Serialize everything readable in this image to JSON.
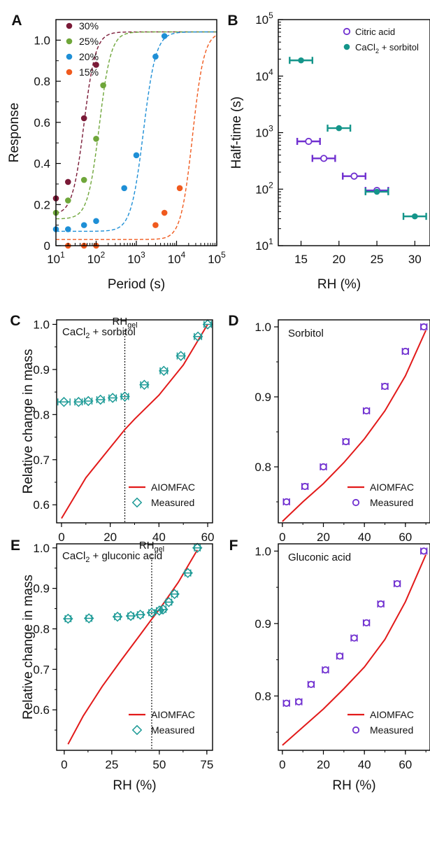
{
  "chart_data": [
    {
      "panel": "A",
      "type": "scatter",
      "xscale": "log",
      "xlabel": "Period (s)",
      "ylabel": "Response",
      "xlim": [
        10,
        100000
      ],
      "ylim": [
        0,
        1.1
      ],
      "xticks": [
        "10",
        "10",
        "10",
        "10",
        "10"
      ],
      "xtick_exp": [
        "1",
        "2",
        "3",
        "4",
        "5"
      ],
      "yticks": [
        "0",
        "0.2",
        "0.4",
        "0.6",
        "0.8",
        "1.0"
      ],
      "series": [
        {
          "name": "30%",
          "color": "#7a1a37",
          "x": [
            10,
            20,
            50,
            100
          ],
          "y": [
            0.23,
            0.31,
            0.62,
            0.88
          ],
          "fit": {
            "x0": 50,
            "k": 3.0,
            "lo": 0.15,
            "hi": 1.04
          }
        },
        {
          "name": "25%",
          "color": "#6fa63a",
          "x": [
            10,
            20,
            50,
            100,
            150
          ],
          "y": [
            0.16,
            0.22,
            0.32,
            0.52,
            0.78
          ],
          "fit": {
            "x0": 120,
            "k": 3.0,
            "lo": 0.13,
            "hi": 1.04
          }
        },
        {
          "name": "20%",
          "color": "#1e8fd6",
          "x": [
            10,
            20,
            50,
            100,
            500,
            1000,
            3000,
            5000
          ],
          "y": [
            0.08,
            0.08,
            0.1,
            0.12,
            0.28,
            0.44,
            0.92,
            1.02
          ],
          "fit": {
            "x0": 1500,
            "k": 2.8,
            "lo": 0.07,
            "hi": 1.04
          }
        },
        {
          "name": "15%",
          "color": "#f05a1e",
          "x": [
            20,
            50,
            100,
            3000,
            5000,
            12000
          ],
          "y": [
            0.0,
            0.0,
            0.0,
            0.1,
            0.16,
            0.28
          ],
          "fit": {
            "x0": 25000,
            "k": 3.0,
            "lo": 0.03,
            "hi": 1.04
          }
        }
      ]
    },
    {
      "panel": "B",
      "type": "scatter",
      "yscale": "log",
      "xlabel": "RH (%)",
      "ylabel": "Half-time (s)",
      "xlim": [
        12,
        32
      ],
      "ylim": [
        10,
        100000
      ],
      "xticks": [
        "15",
        "20",
        "25",
        "30"
      ],
      "yticks": [
        "10",
        "10",
        "10",
        "10",
        "10"
      ],
      "ytick_exp": [
        "1",
        "2",
        "3",
        "4",
        "5"
      ],
      "series": [
        {
          "name": "Citric acid",
          "color": "#7030d0",
          "marker": "open-circle",
          "x": [
            16,
            18,
            22,
            25
          ],
          "y": [
            700,
            350,
            170,
            95
          ],
          "xerr": 1.5
        },
        {
          "name": "CaCl2 + sorbitol",
          "name_base": "CaCl",
          "name_sub": "2",
          "name_rest": " + sorbitol",
          "color": "#14958a",
          "marker": "filled-circle",
          "x": [
            15,
            20,
            25,
            30
          ],
          "y": [
            19000,
            1200,
            90,
            33
          ],
          "xerr": 1.5
        }
      ]
    },
    {
      "panel": "C",
      "type": "scatter",
      "xlabel": "",
      "ylabel": "Relative  change in mass",
      "xlim": [
        -2,
        62
      ],
      "ylim": [
        0.56,
        1.01
      ],
      "xticks": [
        "0",
        "20",
        "40",
        "60"
      ],
      "yticks": [
        "0.6",
        "0.7",
        "0.8",
        "0.9",
        "1.0"
      ],
      "annotation": "CaCl2 + sorbitol",
      "annotation_base": "CaCl",
      "annotation_sub": "2",
      "annotation_rest": " + sorbitol",
      "vline": {
        "x": 26,
        "label_base": "RH",
        "label_sub": "gel"
      },
      "series": [
        {
          "name": "AIOMFAC",
          "color": "#e21a1a",
          "type": "line",
          "x": [
            0,
            10,
            20,
            26,
            30,
            40,
            50,
            60
          ],
          "y": [
            0.57,
            0.66,
            0.727,
            0.767,
            0.79,
            0.843,
            0.91,
            1.0
          ]
        },
        {
          "name": "Measured",
          "color": "#1c9a96",
          "marker": "open-diamond",
          "x": [
            1,
            7,
            11,
            16,
            21,
            26,
            34,
            42,
            49,
            56,
            60
          ],
          "y": [
            0.828,
            0.828,
            0.83,
            0.833,
            0.837,
            0.84,
            0.866,
            0.897,
            0.93,
            0.973,
            1.0
          ],
          "xerr": [
            2.5,
            1.5,
            1.5,
            1.5,
            1.5,
            1.5,
            1.5,
            1.5,
            1.5,
            1.5,
            1.5
          ]
        }
      ]
    },
    {
      "panel": "D",
      "type": "scatter",
      "xlabel": "",
      "ylabel": "",
      "xlim": [
        -2,
        72
      ],
      "ylim": [
        0.72,
        1.01
      ],
      "xticks": [
        "0",
        "20",
        "40",
        "60"
      ],
      "yticks": [
        "0.8",
        "0.9",
        "1.0"
      ],
      "annotation": "Sorbitol",
      "series": [
        {
          "name": "AIOMFAC",
          "color": "#e21a1a",
          "type": "line",
          "x": [
            0,
            10,
            20,
            30,
            40,
            50,
            60,
            70
          ],
          "y": [
            0.722,
            0.75,
            0.776,
            0.806,
            0.84,
            0.88,
            0.93,
            0.995
          ]
        },
        {
          "name": "Measured",
          "color": "#7030d0",
          "marker": "open-circle",
          "x": [
            2,
            11,
            20,
            31,
            41,
            50,
            60,
            69
          ],
          "y": [
            0.75,
            0.772,
            0.8,
            0.836,
            0.88,
            0.915,
            0.965,
            1.0
          ],
          "xerr": 1.5
        }
      ]
    },
    {
      "panel": "E",
      "type": "scatter",
      "xlabel": "RH (%)",
      "ylabel": "Relative  change in mass",
      "xlim": [
        -4,
        78
      ],
      "ylim": [
        0.5,
        1.01
      ],
      "xticks": [
        "0",
        "25",
        "50",
        "75"
      ],
      "yticks": [
        "0.6",
        "0.7",
        "0.8",
        "0.9",
        "1.0"
      ],
      "annotation": "CaCl2 + gluconic acid",
      "annotation_base": "CaCl",
      "annotation_sub": "2",
      "annotation_rest": " + gluconic acid",
      "vline": {
        "x": 46,
        "label_base": "RH",
        "label_sub": "gel"
      },
      "series": [
        {
          "name": "AIOMFAC",
          "color": "#e21a1a",
          "type": "line",
          "x": [
            2,
            10,
            20,
            30,
            40,
            46,
            50,
            60,
            70
          ],
          "y": [
            0.515,
            0.585,
            0.658,
            0.723,
            0.786,
            0.824,
            0.848,
            0.915,
            0.995
          ]
        },
        {
          "name": "Measured",
          "color": "#1c9a96",
          "marker": "open-diamond",
          "x": [
            2,
            13,
            28,
            35,
            40,
            46,
            50,
            52,
            55,
            58,
            65,
            70
          ],
          "y": [
            0.825,
            0.826,
            0.83,
            0.832,
            0.835,
            0.84,
            0.845,
            0.848,
            0.866,
            0.886,
            0.938,
            1.0
          ],
          "xerr": 1.5
        }
      ]
    },
    {
      "panel": "F",
      "type": "scatter",
      "xlabel": "RH (%)",
      "ylabel": "",
      "xlim": [
        -2,
        72
      ],
      "ylim": [
        0.725,
        1.01
      ],
      "xticks": [
        "0",
        "20",
        "40",
        "60"
      ],
      "yticks": [
        "0.8",
        "0.9",
        "1.0"
      ],
      "annotation": "Gluconic acid",
      "series": [
        {
          "name": "AIOMFAC",
          "color": "#e21a1a",
          "type": "line",
          "x": [
            0,
            10,
            20,
            30,
            40,
            50,
            60,
            70
          ],
          "y": [
            0.732,
            0.757,
            0.782,
            0.81,
            0.84,
            0.878,
            0.93,
            0.995
          ]
        },
        {
          "name": "Measured",
          "color": "#7030d0",
          "marker": "open-circle",
          "x": [
            2,
            8,
            14,
            21,
            28,
            35,
            41,
            48,
            56,
            69
          ],
          "y": [
            0.79,
            0.792,
            0.816,
            0.836,
            0.855,
            0.88,
            0.901,
            0.927,
            0.955,
            1.0
          ],
          "xerr": 1.5
        }
      ]
    }
  ]
}
